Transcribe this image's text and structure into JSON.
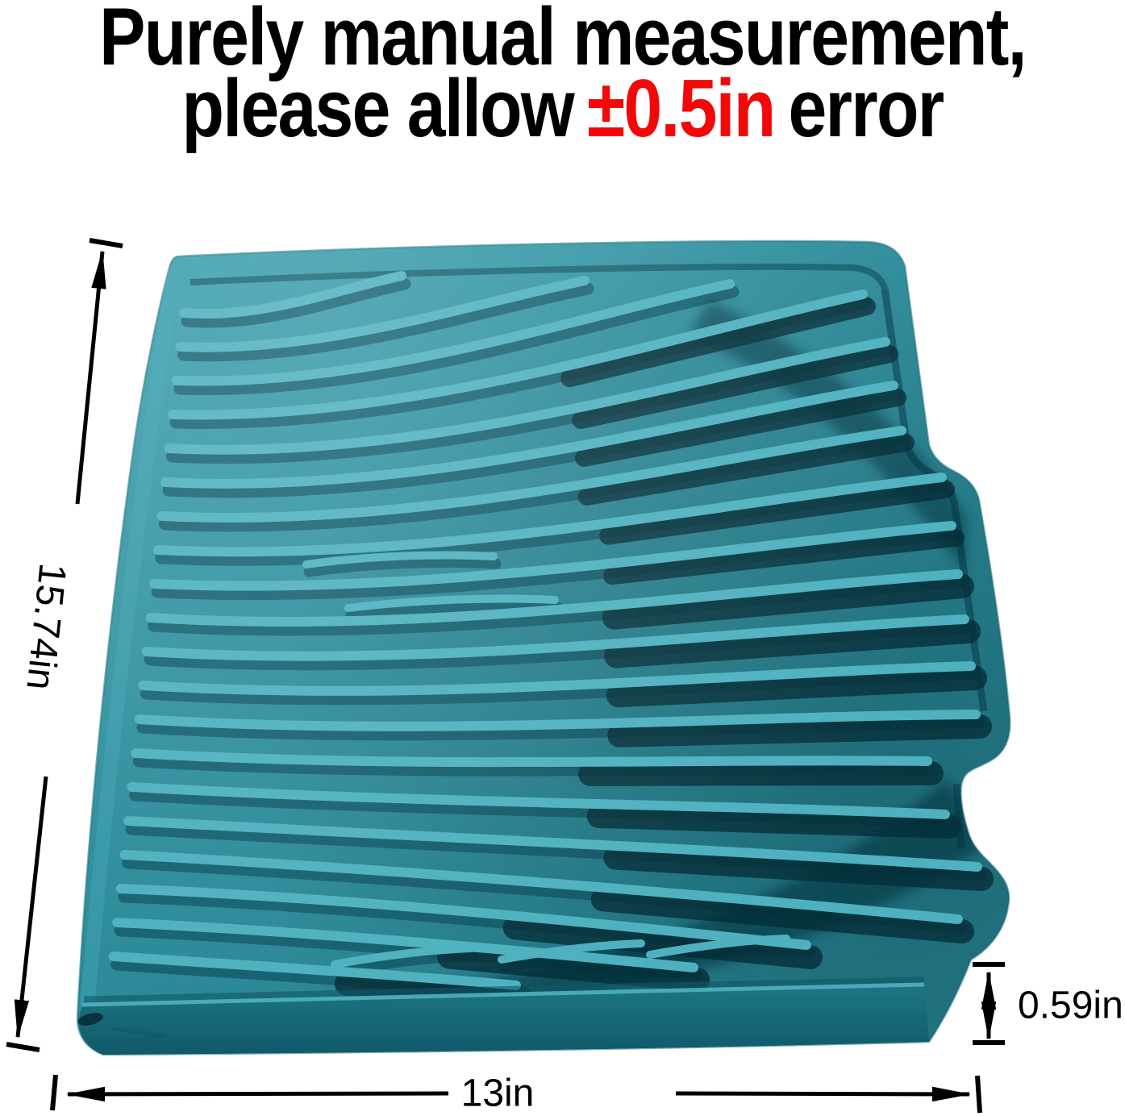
{
  "title": {
    "line1": "Purely manual measurement,",
    "line2_prefix": "please allow",
    "line2_highlight": "±0.5in",
    "line2_suffix": "error"
  },
  "dimensions": {
    "height": "15.74in",
    "width": "13in",
    "thickness": "0.59in"
  },
  "colors": {
    "background": "#ffffff",
    "title_text": "#000000",
    "title_highlight": "#f40708",
    "annotation": "#000000",
    "mat_base": "#2f8e9d",
    "mat_base_light": "#3ea2b1",
    "mat_base_dark": "#26818f",
    "mat_ridge_light": "#4fb1bf",
    "mat_groove": "#125666",
    "mat_deep": "#062e38",
    "mat_front": "#1d7684",
    "mat_front_dark": "#10596a",
    "mat_rim_shadow": "#135a68"
  }
}
